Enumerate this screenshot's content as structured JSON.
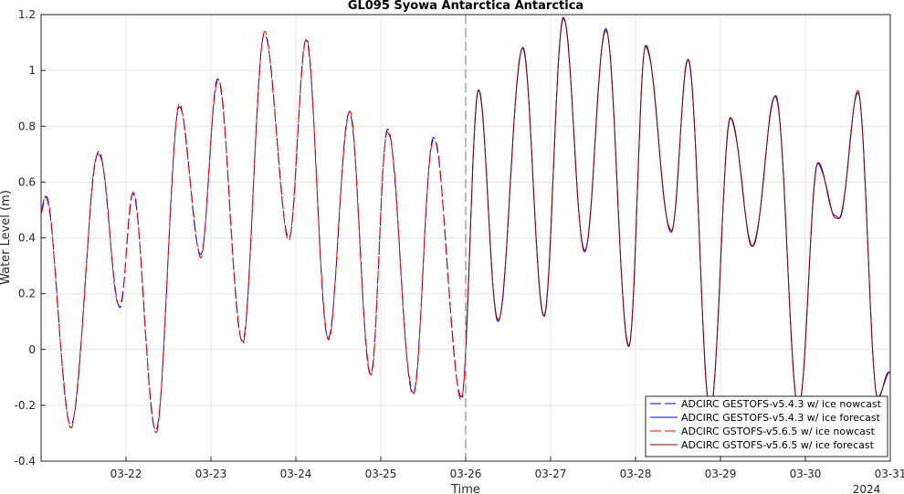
{
  "chart_data": {
    "type": "line",
    "title": "GL095 Syowa Antarctica Antarctica",
    "xlabel": "Time",
    "ylabel": "Water Level (m)",
    "year_label": "2024",
    "x_tick_labels": [
      "03-22",
      "03-23",
      "03-24",
      "03-25",
      "03-26",
      "03-27",
      "03-28",
      "03-29",
      "03-30",
      "03-31"
    ],
    "x_range_days": [
      21.0,
      31.0
    ],
    "x_tick_days": [
      22,
      23,
      24,
      25,
      26,
      27,
      28,
      29,
      30,
      31
    ],
    "ylim": [
      -0.4,
      1.2
    ],
    "y_ticks": [
      -0.4,
      -0.2,
      0,
      0.2,
      0.4,
      0.6,
      0.8,
      1,
      1.2
    ],
    "y_tick_labels": [
      "-0.4",
      "-0.2",
      "0",
      "0.2",
      "0.4",
      "0.6",
      "0.8",
      "1",
      "1.2"
    ],
    "grid": true,
    "legend_position": "bottom-right",
    "nowcast_forecast_split_day": 26.0,
    "extrema": [
      [
        21.0,
        0.5
      ],
      [
        21.05,
        0.55
      ],
      [
        21.35,
        -0.27
      ],
      [
        21.68,
        0.71
      ],
      [
        21.93,
        0.15
      ],
      [
        22.08,
        0.56
      ],
      [
        22.35,
        -0.29
      ],
      [
        22.63,
        0.87
      ],
      [
        22.88,
        0.34
      ],
      [
        23.08,
        0.97
      ],
      [
        23.37,
        0.03
      ],
      [
        23.63,
        1.13
      ],
      [
        23.92,
        0.4
      ],
      [
        24.12,
        1.11
      ],
      [
        24.38,
        0.04
      ],
      [
        24.63,
        0.85
      ],
      [
        24.88,
        -0.09
      ],
      [
        25.08,
        0.79
      ],
      [
        25.38,
        -0.16
      ],
      [
        25.62,
        0.76
      ],
      [
        25.95,
        -0.17
      ],
      [
        26.15,
        0.93
      ],
      [
        26.38,
        0.1
      ],
      [
        26.67,
        1.08
      ],
      [
        26.92,
        0.12
      ],
      [
        27.15,
        1.19
      ],
      [
        27.4,
        0.35
      ],
      [
        27.65,
        1.15
      ],
      [
        27.92,
        0.01
      ],
      [
        28.12,
        1.09
      ],
      [
        28.42,
        0.42
      ],
      [
        28.62,
        1.04
      ],
      [
        28.88,
        -0.22
      ],
      [
        29.12,
        0.83
      ],
      [
        29.38,
        0.37
      ],
      [
        29.65,
        0.91
      ],
      [
        29.92,
        -0.21
      ],
      [
        30.15,
        0.67
      ],
      [
        30.35,
        0.48
      ],
      [
        30.4,
        0.47
      ],
      [
        30.62,
        0.92
      ],
      [
        30.85,
        -0.17
      ],
      [
        31.0,
        -0.08
      ]
    ],
    "series": [
      {
        "name": "ADCIRC GESTOFS-v5.4.3 w/ ice nowcast",
        "color": "#0000ff",
        "style": "dashed",
        "x_range_days": [
          21.0,
          26.0
        ]
      },
      {
        "name": "ADCIRC GESTOFS-v5.4.3 w/ ice forecast",
        "color": "#0000ff",
        "style": "solid",
        "x_range_days": [
          26.0,
          31.0
        ]
      },
      {
        "name": "ADCIRC GSTOFS-v5.6.5 w/ ice nowcast",
        "color": "#ff0000",
        "style": "dashed",
        "x_range_days": [
          21.0,
          26.0
        ]
      },
      {
        "name": "ADCIRC GSTOFS-v5.6.5 w/ ice forecast",
        "color": "#990000",
        "style": "solid",
        "x_range_days": [
          26.0,
          31.0
        ]
      }
    ]
  }
}
